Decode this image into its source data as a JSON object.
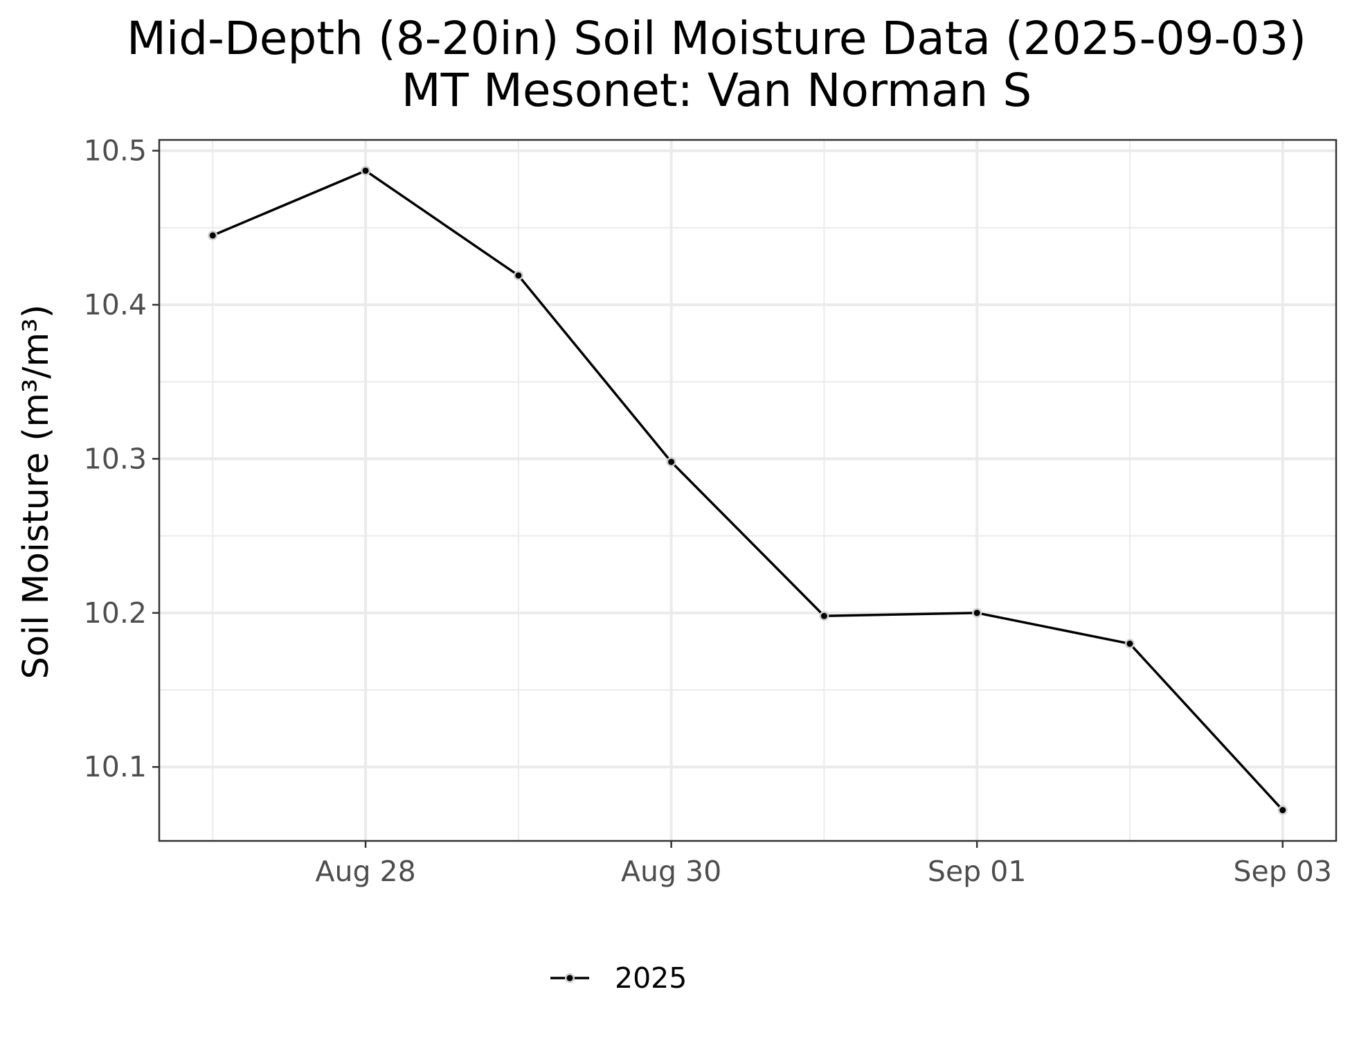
{
  "chart_data": {
    "type": "line",
    "title": "Mid-Depth (8-20in) Soil Moisture Data (2025-09-03)",
    "subtitle": "MT Mesonet: Van Norman S",
    "xlabel": "",
    "ylabel": "Soil Moisture (m³/m³)",
    "x": [
      "2025-08-27",
      "2025-08-28",
      "2025-08-29",
      "2025-08-30",
      "2025-08-31",
      "2025-09-01",
      "2025-09-02",
      "2025-09-03"
    ],
    "xticks": [
      {
        "date": "2025-08-28",
        "label": "Aug 28"
      },
      {
        "date": "2025-08-30",
        "label": "Aug 30"
      },
      {
        "date": "2025-09-01",
        "label": "Sep 01"
      },
      {
        "date": "2025-09-03",
        "label": "Sep 03"
      }
    ],
    "ylim": [
      10.052,
      10.507
    ],
    "yticks": [
      10.1,
      10.2,
      10.3,
      10.4,
      10.5
    ],
    "ytick_labels": [
      "10.1",
      "10.2",
      "10.3",
      "10.4",
      "10.5"
    ],
    "series": [
      {
        "name": "2025",
        "color": "#000000",
        "values": [
          10.445,
          10.487,
          10.419,
          10.298,
          10.198,
          10.2,
          10.18,
          10.072
        ]
      }
    ],
    "grid": true,
    "legend_position": "bottom"
  }
}
